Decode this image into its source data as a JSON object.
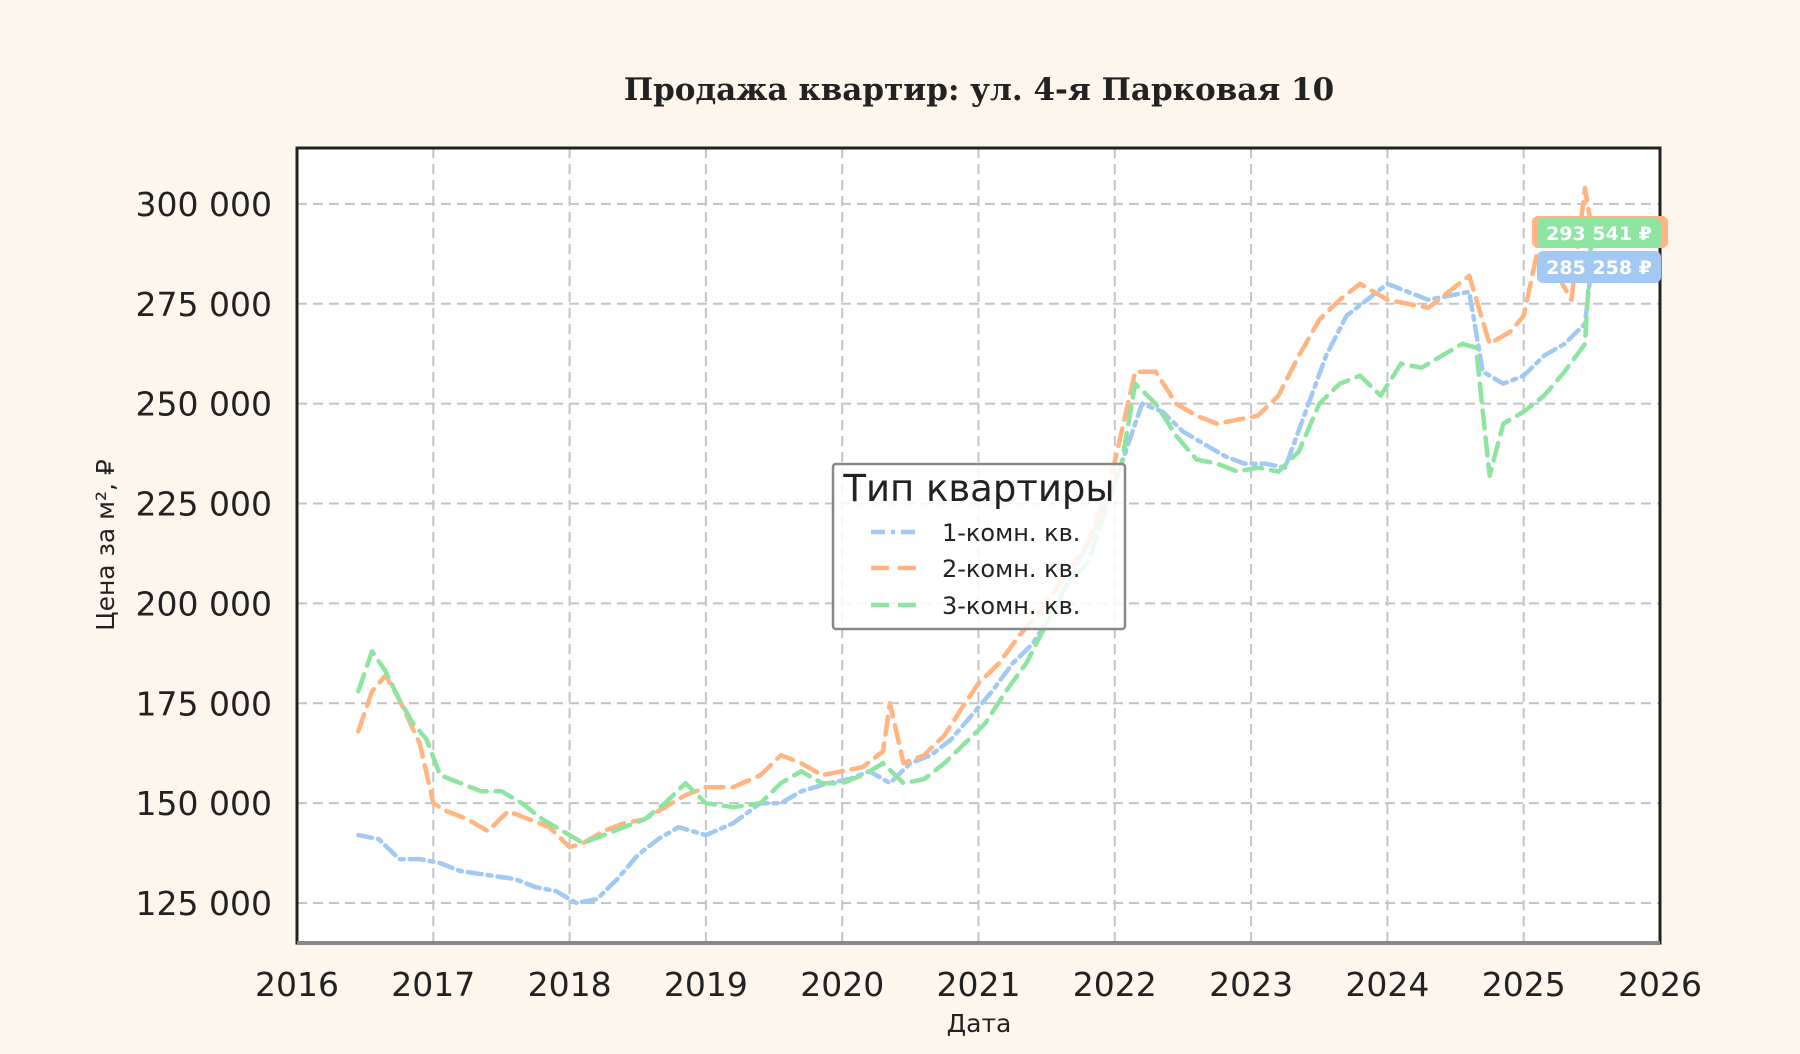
{
  "chart_data": {
    "type": "line",
    "title": "Продажа квартир: ул. 4-я Парковая 10",
    "xlabel": "Дата",
    "ylabel": "Цена за м², ₽",
    "xlim": [
      2016,
      2026
    ],
    "ylim": [
      115000,
      314000
    ],
    "x_ticks": [
      "2016",
      "2017",
      "2018",
      "2019",
      "2020",
      "2021",
      "2022",
      "2023",
      "2024",
      "2025",
      "2026"
    ],
    "y_ticks": [
      "125 000",
      "150 000",
      "175 000",
      "200 000",
      "225 000",
      "250 000",
      "275 000",
      "300 000"
    ],
    "y_tick_values": [
      125000,
      150000,
      175000,
      200000,
      225000,
      250000,
      275000,
      300000
    ],
    "grid": true,
    "legend": {
      "title": "Тип квартиры",
      "placement": "center"
    },
    "series": [
      {
        "name": "1-комн. кв.",
        "color": "#a1c9f4",
        "dash": "14 6 4 6",
        "end_label": "285 258 ₽",
        "x": [
          2016.45,
          2016.6,
          2016.75,
          2016.9,
          2017.05,
          2017.2,
          2017.4,
          2017.6,
          2017.75,
          2017.9,
          2018.05,
          2018.2,
          2018.35,
          2018.5,
          2018.65,
          2018.8,
          2019.0,
          2019.2,
          2019.4,
          2019.55,
          2019.7,
          2019.9,
          2020.05,
          2020.2,
          2020.35,
          2020.5,
          2020.65,
          2020.8,
          2020.95,
          2021.1,
          2021.25,
          2021.4,
          2021.55,
          2021.7,
          2021.85,
          2022.0,
          2022.1,
          2022.2,
          2022.35,
          2022.5,
          2022.65,
          2022.8,
          2022.95,
          2023.1,
          2023.25,
          2023.4,
          2023.55,
          2023.7,
          2023.85,
          2024.0,
          2024.15,
          2024.3,
          2024.45,
          2024.6,
          2024.7,
          2024.85,
          2025.0,
          2025.15,
          2025.3,
          2025.45,
          2025.5
        ],
        "values": [
          142000,
          141000,
          136000,
          136000,
          135000,
          133000,
          132000,
          131000,
          129000,
          128000,
          125000,
          126000,
          131000,
          137000,
          141000,
          144000,
          142000,
          145000,
          150000,
          150000,
          153000,
          155000,
          156000,
          158000,
          155000,
          160000,
          162000,
          166000,
          172000,
          178000,
          185000,
          190000,
          198000,
          208000,
          218000,
          230000,
          240000,
          250000,
          248000,
          243000,
          240000,
          237000,
          235000,
          235000,
          234000,
          248000,
          262000,
          272000,
          276000,
          280000,
          278000,
          276000,
          277000,
          278000,
          258000,
          255000,
          257000,
          262000,
          265000,
          270000,
          285258
        ]
      },
      {
        "name": "2-комн. кв.",
        "color": "#ffb482",
        "dash": "18 9",
        "end_label": "293 541 ₽",
        "x": [
          2016.45,
          2016.55,
          2016.65,
          2016.75,
          2016.9,
          2017.0,
          2017.1,
          2017.25,
          2017.4,
          2017.55,
          2017.7,
          2017.85,
          2018.0,
          2018.1,
          2018.25,
          2018.4,
          2018.55,
          2018.7,
          2018.85,
          2019.0,
          2019.2,
          2019.4,
          2019.55,
          2019.7,
          2019.85,
          2020.0,
          2020.15,
          2020.3,
          2020.35,
          2020.45,
          2020.6,
          2020.75,
          2020.9,
          2021.0,
          2021.15,
          2021.3,
          2021.45,
          2021.6,
          2021.8,
          2021.95,
          2022.05,
          2022.15,
          2022.3,
          2022.45,
          2022.6,
          2022.75,
          2022.9,
          2023.05,
          2023.2,
          2023.35,
          2023.5,
          2023.65,
          2023.8,
          2024.0,
          2024.15,
          2024.3,
          2024.45,
          2024.6,
          2024.75,
          2024.9,
          2025.0,
          2025.1,
          2025.25,
          2025.35,
          2025.45,
          2025.5
        ],
        "values": [
          168000,
          178000,
          182000,
          176000,
          165000,
          150000,
          148000,
          146000,
          143000,
          148000,
          146000,
          144000,
          139000,
          140000,
          143000,
          145000,
          146000,
          149000,
          152000,
          154000,
          154000,
          157000,
          162000,
          160000,
          157000,
          158000,
          159000,
          163000,
          175000,
          160000,
          162000,
          167000,
          175000,
          180000,
          185000,
          192000,
          198000,
          205000,
          215000,
          228000,
          243000,
          258000,
          258000,
          250000,
          247000,
          245000,
          246000,
          247000,
          252000,
          262000,
          271000,
          276000,
          280000,
          276000,
          275000,
          274000,
          278000,
          282000,
          265000,
          268000,
          272000,
          288000,
          282000,
          276000,
          304000,
          293541
        ]
      },
      {
        "name": "3-комн. кв.",
        "color": "#8de5a1",
        "dash": "18 9",
        "end_label": "293 541 ₽",
        "x": [
          2016.45,
          2016.55,
          2016.65,
          2016.75,
          2016.85,
          2016.95,
          2017.05,
          2017.2,
          2017.35,
          2017.5,
          2017.65,
          2017.8,
          2017.95,
          2018.1,
          2018.25,
          2018.4,
          2018.55,
          2018.7,
          2018.85,
          2019.0,
          2019.2,
          2019.4,
          2019.55,
          2019.7,
          2019.85,
          2020.0,
          2020.15,
          2020.3,
          2020.45,
          2020.6,
          2020.75,
          2020.9,
          2021.05,
          2021.2,
          2021.35,
          2021.5,
          2021.65,
          2021.8,
          2021.95,
          2022.05,
          2022.15,
          2022.3,
          2022.45,
          2022.6,
          2022.75,
          2022.9,
          2023.05,
          2023.2,
          2023.35,
          2023.5,
          2023.65,
          2023.8,
          2023.95,
          2024.1,
          2024.25,
          2024.4,
          2024.55,
          2024.65,
          2024.75,
          2024.85,
          2025.0,
          2025.15,
          2025.3,
          2025.45,
          2025.5
        ],
        "values": [
          178000,
          188000,
          183000,
          176000,
          170000,
          166000,
          157000,
          155000,
          153000,
          153000,
          150000,
          146000,
          143000,
          140000,
          142000,
          144000,
          146000,
          150000,
          155000,
          150000,
          149000,
          150000,
          155000,
          158000,
          155000,
          155000,
          157000,
          160000,
          155000,
          156000,
          160000,
          165000,
          170000,
          178000,
          185000,
          195000,
          205000,
          210000,
          225000,
          235000,
          255000,
          250000,
          242000,
          236000,
          235000,
          233000,
          234000,
          233000,
          238000,
          250000,
          255000,
          257000,
          252000,
          260000,
          259000,
          262000,
          265000,
          264000,
          232000,
          245000,
          248000,
          252000,
          258000,
          265000,
          293541
        ]
      }
    ]
  }
}
